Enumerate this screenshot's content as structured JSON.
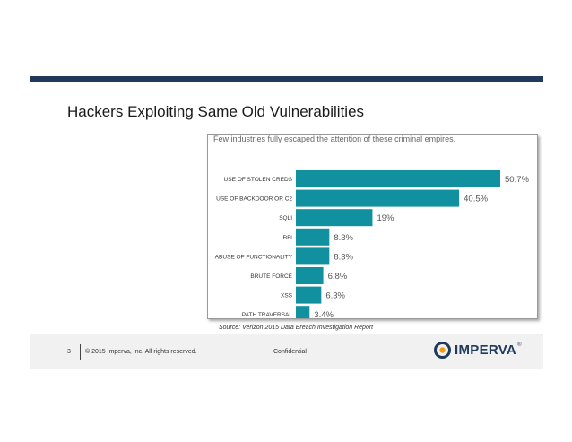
{
  "slide": {
    "title": "Hackers Exploiting Same Old Vulnerabilities"
  },
  "chart_data": {
    "type": "bar",
    "orientation": "horizontal",
    "subtitle": "Few industries fully escaped the attention of these criminal empires.",
    "categories": [
      "USE OF STOLEN CREDS",
      "USE OF BACKDOOR OR C2",
      "SQLI",
      "RFI",
      "ABUSE OF FUNCTIONALITY",
      "BRUTE FORCE",
      "XSS",
      "PATH TRAVERSAL"
    ],
    "values": [
      50.7,
      40.5,
      19,
      8.3,
      8.3,
      6.8,
      6.3,
      3.4
    ],
    "value_labels": [
      "50.7%",
      "40.5%",
      "19%",
      "8.3%",
      "8.3%",
      "6.8%",
      "6.3%",
      "3.4%"
    ],
    "xlim": [
      0,
      50.7
    ],
    "bar_color": "#11909f",
    "grid": false,
    "source": "Source: Verizon 2015 Data Breach Investigation Report"
  },
  "footer": {
    "page_number": "3",
    "copyright": "© 2015 Imperva, Inc. All rights reserved.",
    "confidential": "Confidential",
    "logo_text": "IMPERVA",
    "logo_mark": "®",
    "brand_color": "#1f3a5a",
    "logo_accent": "#f39c12"
  }
}
